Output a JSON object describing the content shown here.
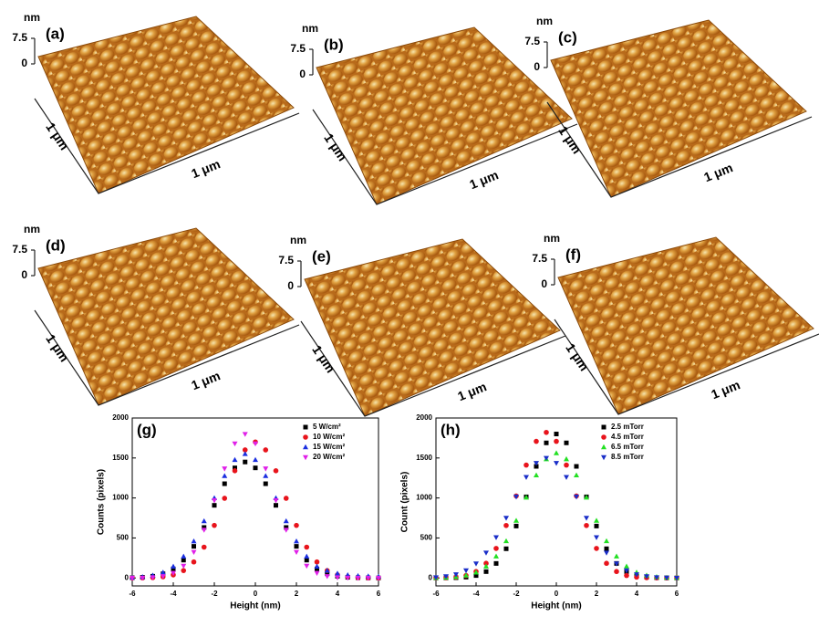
{
  "panels": [
    {
      "label": "(a)"
    },
    {
      "label": "(b)"
    },
    {
      "label": "(c)"
    },
    {
      "label": "(d)"
    },
    {
      "label": "(e)"
    },
    {
      "label": "(f)"
    }
  ],
  "z_unit": "nm",
  "z_ticks": [
    7.5,
    0
  ],
  "size_label": "1 μm",
  "chart_data": [
    {
      "type": "scatter",
      "label": "(g)",
      "xlabel": "Height (nm)",
      "ylabel": "Counts (pixels)",
      "xlim": [
        -6,
        6
      ],
      "ylim": [
        -100,
        2000
      ],
      "xticks": [
        -6,
        -4,
        -2,
        0,
        2,
        4,
        6
      ],
      "yticks": [
        0,
        500,
        1000,
        1500,
        2000
      ],
      "x": [
        -6,
        -5.5,
        -5,
        -4.5,
        -4,
        -3.5,
        -3,
        -2.5,
        -2,
        -1.5,
        -1,
        -0.5,
        0,
        0.5,
        1,
        1.5,
        2,
        2.5,
        3,
        3.5,
        4,
        4.5,
        5,
        5.5,
        6
      ],
      "series": [
        {
          "name": "5 W/cm²",
          "color": "#000000",
          "marker": "square",
          "values": [
            3,
            8,
            21,
            52,
            113,
            223,
            395,
            631,
            908,
            1178,
            1376,
            1450,
            1376,
            1178,
            908,
            631,
            395,
            223,
            113,
            52,
            21,
            8,
            3,
            1,
            0
          ]
        },
        {
          "name": "10 W/cm²",
          "color": "#e8141c",
          "marker": "circle",
          "values": [
            0,
            1,
            4,
            14,
            38,
            92,
            200,
            385,
            657,
            996,
            1340,
            1601,
            1700,
            1601,
            1340,
            996,
            657,
            385,
            200,
            92,
            38,
            14,
            4,
            1,
            0
          ]
        },
        {
          "name": "15 W/cm²",
          "color": "#1a2ee0",
          "marker": "triangle-up",
          "values": [
            4,
            12,
            30,
            68,
            142,
            267,
            457,
            710,
            998,
            1275,
            1476,
            1550,
            1476,
            1275,
            998,
            710,
            457,
            267,
            142,
            90,
            55,
            35,
            25,
            20,
            15
          ]
        },
        {
          "name": "20 W/cm²",
          "color": "#e020e8",
          "marker": "triangle-down",
          "values": [
            0,
            2,
            7,
            22,
            62,
            152,
            324,
            601,
            971,
            1368,
            1681,
            1800,
            1681,
            1368,
            971,
            601,
            324,
            152,
            62,
            22,
            7,
            2,
            0,
            0,
            0
          ]
        }
      ]
    },
    {
      "type": "scatter",
      "label": "(h)",
      "xlabel": "Height (nm)",
      "ylabel": "Count (pixels)",
      "xlim": [
        -6,
        6
      ],
      "ylim": [
        -100,
        2000
      ],
      "xticks": [
        -6,
        -4,
        -2,
        0,
        2,
        4,
        6
      ],
      "yticks": [
        0,
        500,
        1000,
        1500,
        2000
      ],
      "x": [
        -6,
        -5.5,
        -5,
        -4.5,
        -4,
        -3.5,
        -3,
        -2.5,
        -2,
        -1.5,
        -1,
        -0.5,
        0,
        0.5,
        1,
        1.5,
        2,
        2.5,
        3,
        3.5,
        4,
        4.5,
        5,
        5.5,
        6
      ],
      "series": [
        {
          "name": "2.5 mTorr",
          "color": "#000000",
          "marker": "square",
          "values": [
            0,
            1,
            3,
            10,
            30,
            79,
            181,
            365,
            649,
            1014,
            1395,
            1689,
            1800,
            1689,
            1395,
            1014,
            649,
            365,
            181,
            79,
            30,
            10,
            3,
            1,
            0
          ]
        },
        {
          "name": "4.5 mTorr",
          "color": "#e8141c",
          "marker": "circle",
          "values": [
            1,
            3,
            10,
            30,
            80,
            183,
            369,
            656,
            1025,
            1411,
            1708,
            1820,
            1708,
            1411,
            1025,
            656,
            369,
            183,
            80,
            30,
            10,
            3,
            1,
            0,
            0
          ]
        },
        {
          "name": "6.5 mTorr",
          "color": "#22e022",
          "marker": "triangle-up",
          "values": [
            1,
            4,
            12,
            30,
            68,
            143,
            269,
            460,
            715,
            1005,
            1283,
            1485,
            1560,
            1485,
            1283,
            1005,
            715,
            460,
            269,
            143,
            68,
            30,
            12,
            4,
            1
          ]
        },
        {
          "name": "8.5 mTorr",
          "color": "#1a2ec8",
          "marker": "triangle-down",
          "values": [
            8,
            20,
            45,
            94,
            180,
            316,
            509,
            751,
            1017,
            1262,
            1437,
            1500,
            1437,
            1262,
            1017,
            751,
            509,
            316,
            180,
            94,
            45,
            20,
            8,
            3,
            1
          ]
        }
      ]
    }
  ]
}
